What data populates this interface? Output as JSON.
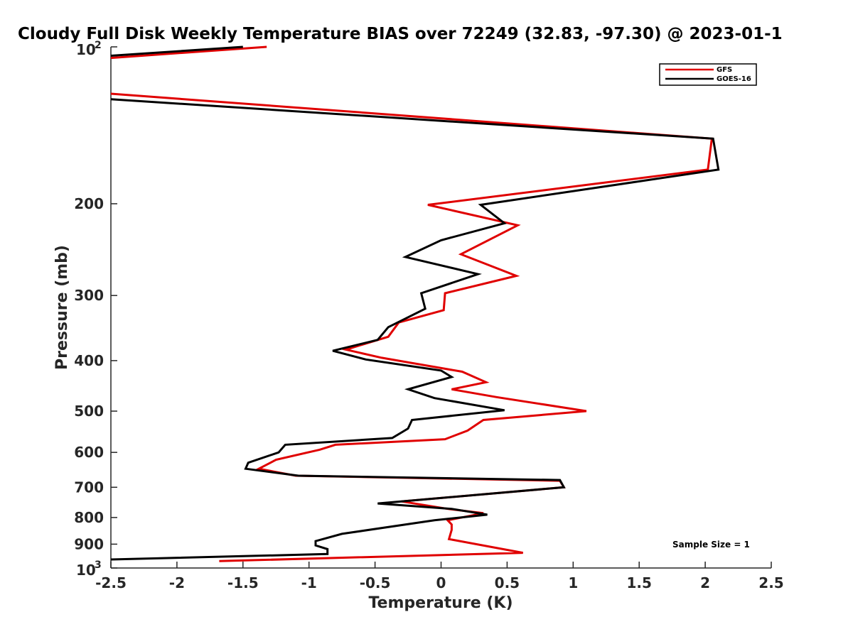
{
  "chart_data": {
    "type": "line",
    "title": "Cloudy Full Disk Weekly Temperature BIAS over 72249 (32.83, -97.30) @ 2023-01-1",
    "xlabel": "Temperature (K)",
    "ylabel": "Pressure (mb)",
    "xlim": [
      -2.5,
      2.5
    ],
    "ylim": [
      100,
      1000
    ],
    "yscale": "log",
    "y_reversed": true,
    "xticks": [
      "-2.5",
      "-2",
      "-1.5",
      "-1",
      "-0.5",
      "0",
      "0.5",
      "1",
      "1.5",
      "2",
      "2.5"
    ],
    "xtick_values": [
      -2.5,
      -2,
      -1.5,
      -1,
      -0.5,
      0,
      0.5,
      1,
      1.5,
      2,
      2.5
    ],
    "ytick_values": [
      200,
      300,
      400,
      500,
      600,
      700,
      800,
      900
    ],
    "ytick_labels": [
      "200",
      "300",
      "400",
      "500",
      "600",
      "700",
      "800",
      "900"
    ],
    "ytick_end_labels": {
      "top_base": "10",
      "top_exp": "2",
      "bottom_base": "10",
      "bottom_exp": "3"
    },
    "legend": {
      "position": "top-right"
    },
    "annotation": "Sample Size = 1",
    "grid": false,
    "series": [
      {
        "name": "GFS",
        "color": "#e00000",
        "points": [
          [
            -1.32,
            100
          ],
          [
            -2.5,
            105
          ],
          [
            null,
            null
          ],
          [
            -2.5,
            123
          ],
          [
            2.05,
            150
          ],
          [
            2.02,
            172
          ],
          [
            -0.1,
            201
          ],
          [
            0.58,
            220
          ],
          [
            0.15,
            250
          ],
          [
            0.57,
            275
          ],
          [
            0.03,
            297
          ],
          [
            0.02,
            320
          ],
          [
            -0.32,
            338
          ],
          [
            -0.4,
            360
          ],
          [
            -0.72,
            381
          ],
          [
            -0.45,
            395
          ],
          [
            0.16,
            420
          ],
          [
            0.34,
            440
          ],
          [
            0.08,
            454
          ],
          [
            0.42,
            470
          ],
          [
            1.1,
            500
          ],
          [
            0.32,
            520
          ],
          [
            0.2,
            545
          ],
          [
            0.03,
            566
          ],
          [
            -0.8,
            580
          ],
          [
            -0.92,
            593
          ],
          [
            -1.25,
            620
          ],
          [
            -1.38,
            645
          ],
          [
            -1.1,
            665
          ],
          [
            0.9,
            680
          ],
          [
            0.93,
            700
          ],
          [
            -0.3,
            745
          ],
          [
            0.05,
            770
          ],
          [
            0.32,
            785
          ],
          [
            0.05,
            810
          ],
          [
            0.08,
            825
          ],
          [
            0.08,
            845
          ],
          [
            0.06,
            880
          ],
          [
            0.62,
            935
          ],
          [
            -1.68,
            970
          ]
        ]
      },
      {
        "name": "GOES-16",
        "color": "#000000",
        "points": [
          [
            -1.5,
            100
          ],
          [
            -2.5,
            104
          ],
          [
            null,
            null
          ],
          [
            -2.5,
            126
          ],
          [
            2.06,
            150
          ],
          [
            2.1,
            172
          ],
          [
            0.3,
            201
          ],
          [
            0.48,
            218
          ],
          [
            0.0,
            235
          ],
          [
            -0.27,
            253
          ],
          [
            0.28,
            273
          ],
          [
            -0.15,
            297
          ],
          [
            -0.12,
            318
          ],
          [
            -0.4,
            345
          ],
          [
            -0.48,
            365
          ],
          [
            -0.82,
            383
          ],
          [
            -0.57,
            398
          ],
          [
            0.0,
            418
          ],
          [
            0.08,
            430
          ],
          [
            -0.25,
            454
          ],
          [
            -0.05,
            472
          ],
          [
            0.48,
            498
          ],
          [
            -0.22,
            520
          ],
          [
            -0.25,
            540
          ],
          [
            -0.37,
            563
          ],
          [
            -1.18,
            580
          ],
          [
            -1.23,
            600
          ],
          [
            -1.46,
            628
          ],
          [
            -1.48,
            645
          ],
          [
            -1.08,
            665
          ],
          [
            0.9,
            678
          ],
          [
            0.93,
            700
          ],
          [
            -0.48,
            752
          ],
          [
            0.08,
            770
          ],
          [
            0.35,
            790
          ],
          [
            -0.05,
            810
          ],
          [
            -0.75,
            860
          ],
          [
            -0.95,
            888
          ],
          [
            -0.95,
            905
          ],
          [
            -0.86,
            920
          ],
          [
            -0.86,
            940
          ],
          [
            -2.5,
            963
          ]
        ]
      }
    ]
  }
}
